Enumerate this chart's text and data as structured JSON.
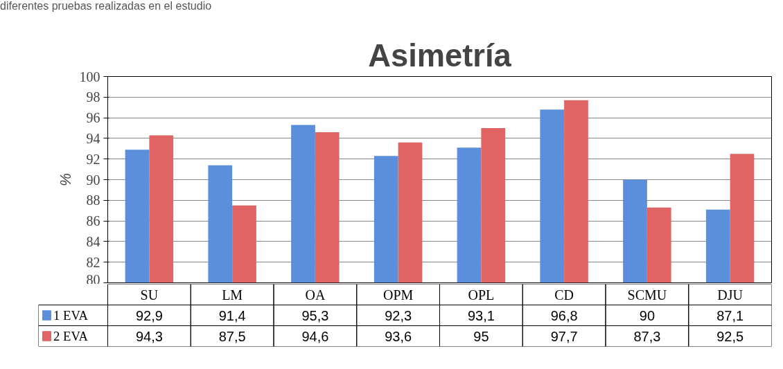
{
  "chart_data": {
    "type": "bar",
    "title": "Asimetría",
    "ylabel": "%",
    "annotations": [
      "diferentes pruebas realizadas en el estudio"
    ],
    "categories": [
      "SU",
      "LM",
      "OA",
      "OPM",
      "OPL",
      "CD",
      "SCMU",
      "DJU"
    ],
    "series": [
      {
        "name": "1 EVA",
        "color": "#5b8fdc",
        "values": [
          92.9,
          91.4,
          95.3,
          92.3,
          93.1,
          96.8,
          90,
          87.1
        ],
        "value_labels": [
          "92,9",
          "91,4",
          "95,3",
          "92,3",
          "93,1",
          "96,8",
          "90",
          "87,1"
        ]
      },
      {
        "name": "2 EVA",
        "color": "#e06464",
        "values": [
          94.3,
          87.5,
          94.6,
          93.6,
          95,
          97.7,
          87.3,
          92.5
        ],
        "value_labels": [
          "94,3",
          "87,5",
          "94,6",
          "93,6",
          "95",
          "97,7",
          "87,3",
          "92,5"
        ]
      }
    ],
    "ylim": [
      80,
      100
    ],
    "yticks": [
      80,
      82,
      84,
      86,
      88,
      90,
      92,
      94,
      96,
      98,
      100
    ],
    "grid": "y",
    "legend": "bottom"
  }
}
